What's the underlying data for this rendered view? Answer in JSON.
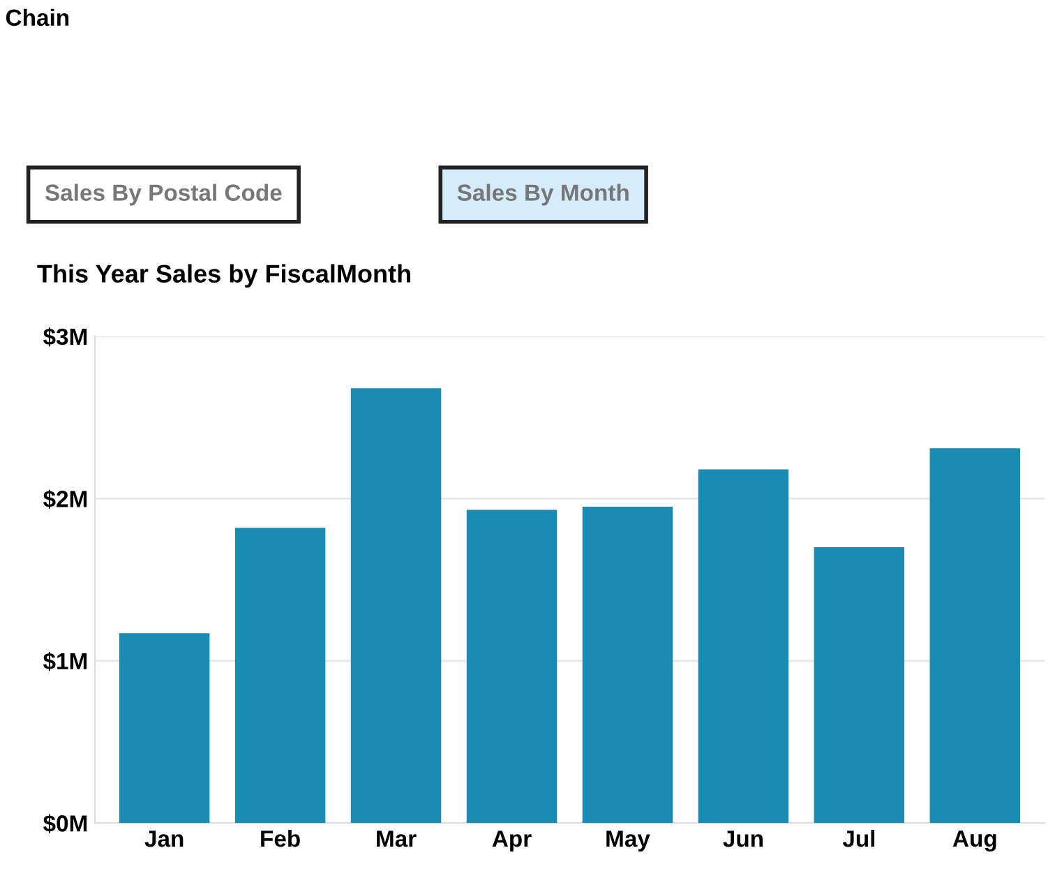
{
  "chart_data": {
    "type": "bar",
    "title": "This Year Sales by FiscalMonth",
    "categories": [
      "Jan",
      "Feb",
      "Mar",
      "Apr",
      "May",
      "Jun",
      "Jul",
      "Aug"
    ],
    "values": [
      1.17,
      1.82,
      2.68,
      1.93,
      1.95,
      2.18,
      1.7,
      2.31
    ],
    "color": "#1a8bb3",
    "ylim": [
      0,
      3
    ],
    "yticks": [
      {
        "value": 0,
        "label": "$0M"
      },
      {
        "value": 1,
        "label": "$1M"
      },
      {
        "value": 2,
        "label": "$2M"
      },
      {
        "value": 3,
        "label": "$3M"
      }
    ],
    "grid": "y",
    "annotations": [
      "Chain",
      "Sales By Postal Code",
      "Sales By Month"
    ]
  }
}
